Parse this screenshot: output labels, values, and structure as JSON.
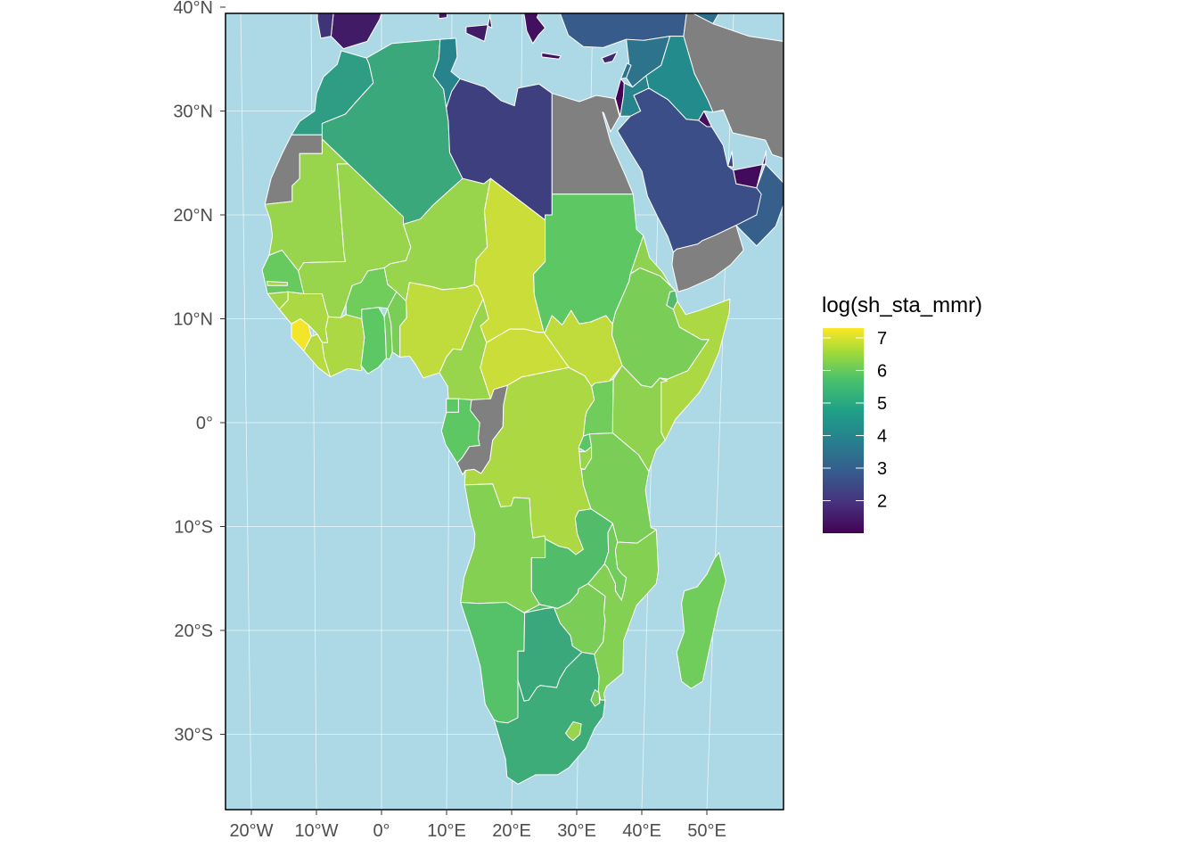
{
  "colors": {
    "ocean": "#add8e6",
    "na": "#808080",
    "border": "#ffffff",
    "frame": "#000000",
    "gradient": [
      "#440154",
      "#3b528b",
      "#21918c",
      "#5ec962",
      "#fde725"
    ]
  },
  "map": {
    "projection": "conic / near-equirectangular",
    "lat_ticks": [
      "40°N",
      "30°N",
      "20°N",
      "10°N",
      "0°",
      "10°S",
      "20°S",
      "30°S"
    ],
    "lon_ticks": [
      "20°W",
      "10°W",
      "0°",
      "10°E",
      "20°E",
      "30°E",
      "40°E",
      "50°E"
    ],
    "extent": {
      "lon": [
        -23,
        60
      ],
      "lat": [
        -37,
        41
      ]
    }
  },
  "legend": {
    "title": "log(sh_sta_mmr)",
    "labels": [
      "7",
      "6",
      "5",
      "4",
      "3",
      "2"
    ],
    "values": [
      7,
      6,
      5,
      4,
      3,
      2
    ],
    "range": [
      1.0,
      7.3
    ]
  },
  "countries": [
    {
      "name": "Morocco",
      "value": 4.5
    },
    {
      "name": "Western Sahara",
      "value": null
    },
    {
      "name": "Algeria",
      "value": 4.8
    },
    {
      "name": "Tunisia",
      "value": 3.8
    },
    {
      "name": "Libya",
      "value": 2.2
    },
    {
      "name": "Egypt",
      "value": null
    },
    {
      "name": "Mauritania",
      "value": 6.3
    },
    {
      "name": "Mali",
      "value": 6.3
    },
    {
      "name": "Niger",
      "value": 6.3
    },
    {
      "name": "Chad",
      "value": 6.8
    },
    {
      "name": "Sudan",
      "value": 5.7
    },
    {
      "name": "Senegal",
      "value": 5.8
    },
    {
      "name": "Gambia",
      "value": 6.4
    },
    {
      "name": "Guinea-Bissau",
      "value": 6.4
    },
    {
      "name": "Guinea",
      "value": 6.5
    },
    {
      "name": "Sierra Leone",
      "value": 7.2
    },
    {
      "name": "Liberia",
      "value": 6.6
    },
    {
      "name": "Côte d'Ivoire",
      "value": 6.5
    },
    {
      "name": "Burkina Faso",
      "value": 5.9
    },
    {
      "name": "Ghana",
      "value": 5.7
    },
    {
      "name": "Togo",
      "value": 5.9
    },
    {
      "name": "Benin",
      "value": 6.0
    },
    {
      "name": "Nigeria",
      "value": 6.7
    },
    {
      "name": "Cameroon",
      "value": 6.3
    },
    {
      "name": "Central African Republic",
      "value": 6.8
    },
    {
      "name": "South Sudan",
      "value": 6.7
    },
    {
      "name": "Ethiopia",
      "value": 6.0
    },
    {
      "name": "Eritrea",
      "value": 6.2
    },
    {
      "name": "Djibouti",
      "value": 5.4
    },
    {
      "name": "Somalia",
      "value": 6.5
    },
    {
      "name": "Equatorial Guinea",
      "value": 5.7
    },
    {
      "name": "Gabon",
      "value": 5.7
    },
    {
      "name": "Congo",
      "value": null
    },
    {
      "name": "DR Congo",
      "value": 6.5
    },
    {
      "name": "Uganda",
      "value": 5.9
    },
    {
      "name": "Kenya",
      "value": 6.2
    },
    {
      "name": "Rwanda",
      "value": 5.6
    },
    {
      "name": "Burundi",
      "value": 6.3
    },
    {
      "name": "Tanzania",
      "value": 6.0
    },
    {
      "name": "Angola",
      "value": 6.1
    },
    {
      "name": "Zambia",
      "value": 5.4
    },
    {
      "name": "Malawi",
      "value": 5.9
    },
    {
      "name": "Mozambique",
      "value": 6.1
    },
    {
      "name": "Zimbabwe",
      "value": 6.0
    },
    {
      "name": "Namibia",
      "value": 5.5
    },
    {
      "name": "Botswana",
      "value": 4.8
    },
    {
      "name": "South Africa",
      "value": 4.9
    },
    {
      "name": "Lesotho",
      "value": 6.3
    },
    {
      "name": "Eswatini",
      "value": 6.0
    },
    {
      "name": "Madagascar",
      "value": 5.9
    },
    {
      "name": "Spain",
      "value": 1.5
    },
    {
      "name": "Portugal",
      "value": 2.0
    },
    {
      "name": "Italy",
      "value": 1.5
    },
    {
      "name": "Greece",
      "value": 1.3
    },
    {
      "name": "Turkey",
      "value": 2.8
    },
    {
      "name": "Cyprus",
      "value": 1.8
    },
    {
      "name": "Syria",
      "value": 3.4
    },
    {
      "name": "Lebanon",
      "value": 3.4
    },
    {
      "name": "Israel",
      "value": 1.1
    },
    {
      "name": "Jordan",
      "value": 3.8
    },
    {
      "name": "Iraq",
      "value": 4.0
    },
    {
      "name": "Iran",
      "value": null
    },
    {
      "name": "Saudi Arabia",
      "value": 2.5
    },
    {
      "name": "Yemen",
      "value": null
    },
    {
      "name": "Oman",
      "value": 2.9
    },
    {
      "name": "UAE",
      "value": 1.2
    },
    {
      "name": "Qatar",
      "value": 2.3
    },
    {
      "name": "Kuwait",
      "value": 1.3
    },
    {
      "name": "Caucasus",
      "value": 3.3
    }
  ]
}
